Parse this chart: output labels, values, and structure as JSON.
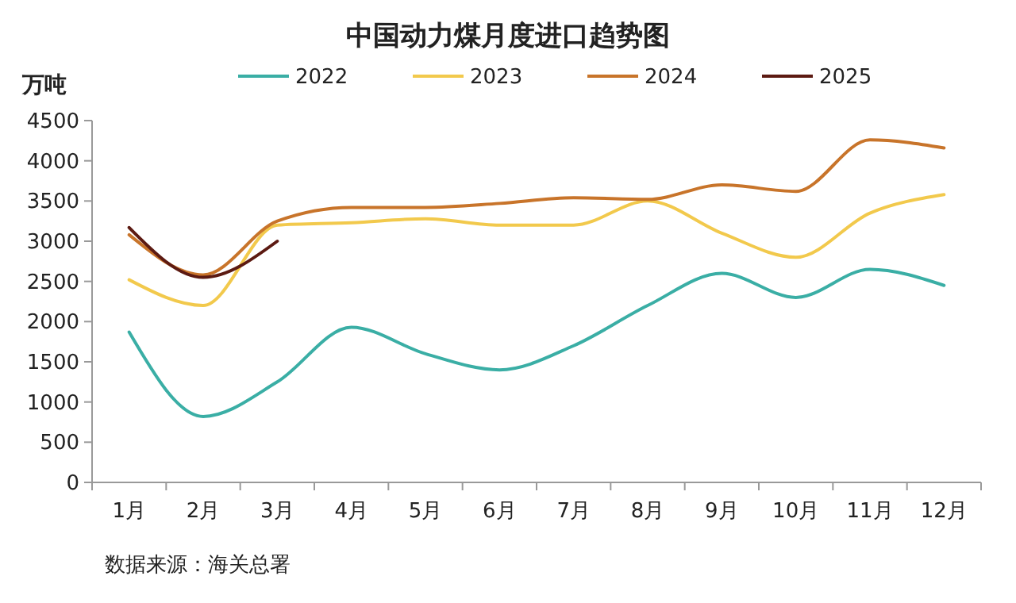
{
  "chart_data": {
    "type": "line",
    "title": "中国动力煤月度进口趋势图",
    "ylabel": "万吨",
    "annotations": [
      "数据来源：海关总署"
    ],
    "categories": [
      "1月",
      "2月",
      "3月",
      "4月",
      "5月",
      "6月",
      "7月",
      "8月",
      "9月",
      "10月",
      "11月",
      "12月"
    ],
    "series": [
      {
        "name": "2022",
        "color": "#3aaea5",
        "values": [
          1870,
          820,
          1250,
          1930,
          1600,
          1400,
          1700,
          2200,
          2600,
          2300,
          2650,
          2450
        ]
      },
      {
        "name": "2023",
        "color": "#f2c94c",
        "values": [
          2520,
          2200,
          3200,
          3230,
          3280,
          3200,
          3200,
          3500,
          3100,
          2800,
          3350,
          3580
        ]
      },
      {
        "name": "2024",
        "color": "#c8742a",
        "values": [
          3080,
          2580,
          3250,
          3420,
          3420,
          3470,
          3540,
          3520,
          3700,
          3620,
          4260,
          4160
        ]
      },
      {
        "name": "2025",
        "color": "#5c1a12",
        "values": [
          3170,
          2550,
          3000,
          null,
          null,
          null,
          null,
          null,
          null,
          null,
          null,
          null
        ]
      }
    ],
    "ylim": [
      0,
      4500
    ],
    "yticks": [
      0,
      500,
      1000,
      1500,
      2000,
      2500,
      3000,
      3500,
      4000,
      4500
    ],
    "grid": false,
    "legend": "top",
    "marker": "none",
    "line_style": "solid"
  }
}
